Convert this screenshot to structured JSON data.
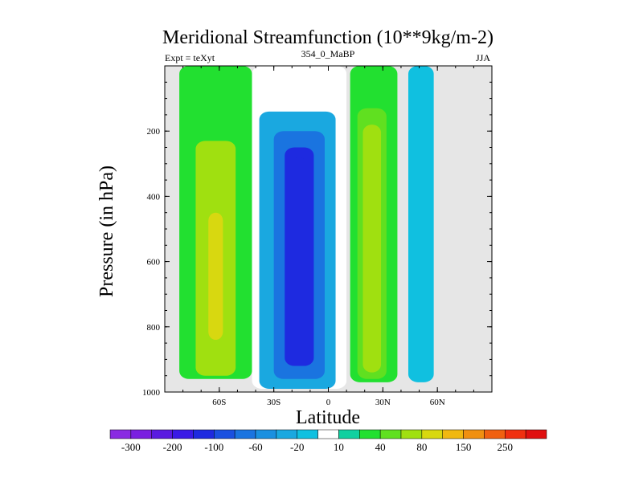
{
  "chart_data": {
    "type": "heatmap",
    "title": "Meridional Streamfunction (10**9kg/m-2)",
    "subtitle_left": "Expt = teXyt",
    "subtitle_center": "354_0_MaBP",
    "subtitle_right": "JJA",
    "xlabel": "Latitude",
    "ylabel": "Pressure (in hPa)",
    "xlim": [
      -90,
      90
    ],
    "ylim": [
      1000,
      0
    ],
    "x_ticks": [
      {
        "value": -60,
        "label": "60S"
      },
      {
        "value": -30,
        "label": "30S"
      },
      {
        "value": 0,
        "label": "0"
      },
      {
        "value": 30,
        "label": "30N"
      },
      {
        "value": 60,
        "label": "60N"
      }
    ],
    "y_ticks": [
      {
        "value": 200,
        "label": "200"
      },
      {
        "value": 400,
        "label": "400"
      },
      {
        "value": 600,
        "label": "600"
      },
      {
        "value": 800,
        "label": "800"
      },
      {
        "value": 1000,
        "label": "1000"
      }
    ],
    "colorbar": {
      "colors": [
        "#8a2be2",
        "#7a1fe0",
        "#5a1ae0",
        "#3a1ae6",
        "#1e2ae0",
        "#1a50e0",
        "#1a74e0",
        "#1a90e0",
        "#1aa8e0",
        "#10c0e0",
        "#ffffff",
        "#10d0a0",
        "#22e030",
        "#60e020",
        "#a0e010",
        "#d8d810",
        "#f0b810",
        "#f09010",
        "#f06010",
        "#f03010",
        "#e01010"
      ],
      "labels": [
        "-300",
        "-200",
        "-100",
        "-60",
        "-20",
        "10",
        "40",
        "80",
        "150",
        "250"
      ]
    },
    "background_color": "#e6e6e6",
    "cells": [
      {
        "lat_min": -82,
        "lat_max": -42,
        "p_top": 0,
        "p_bottom": 960,
        "value": 30
      },
      {
        "lat_min": -73,
        "lat_max": -51,
        "p_top": 230,
        "p_bottom": 950,
        "value": 60
      },
      {
        "lat_min": -66,
        "lat_max": -58,
        "p_top": 450,
        "p_bottom": 840,
        "value": 80
      },
      {
        "lat_min": -42,
        "lat_max": 10,
        "p_top": 0,
        "p_bottom": 990,
        "value": -10
      },
      {
        "lat_min": -38,
        "lat_max": 4,
        "p_top": 140,
        "p_bottom": 990,
        "value": -40
      },
      {
        "lat_min": -30,
        "lat_max": -2,
        "p_top": 200,
        "p_bottom": 960,
        "value": -80
      },
      {
        "lat_min": -24,
        "lat_max": -8,
        "p_top": 250,
        "p_bottom": 920,
        "value": -120
      },
      {
        "lat_min": -20,
        "lat_max": -12,
        "p_top": 280,
        "p_bottom": 850,
        "value": -150
      },
      {
        "lat_min": 12,
        "lat_max": 38,
        "p_top": 0,
        "p_bottom": 970,
        "value": 20
      },
      {
        "lat_min": 16,
        "lat_max": 32,
        "p_top": 130,
        "p_bottom": 960,
        "value": 40
      },
      {
        "lat_min": 19,
        "lat_max": 29,
        "p_top": 180,
        "p_bottom": 940,
        "value": 70
      },
      {
        "lat_min": 44,
        "lat_max": 58,
        "p_top": 0,
        "p_bottom": 970,
        "value": -15
      }
    ]
  }
}
